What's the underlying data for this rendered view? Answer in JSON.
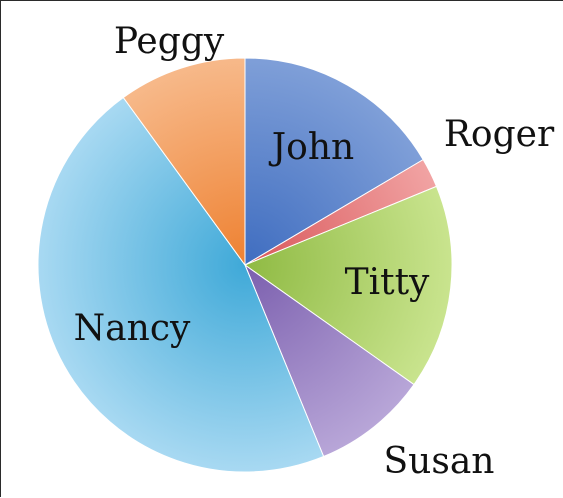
{
  "chart_data": {
    "type": "pie",
    "title": "",
    "legend": "none",
    "slices": [
      {
        "label": "John",
        "value": 16.5,
        "color": "#7f9fd8",
        "color_dark": "#3f6dc0"
      },
      {
        "label": "Roger",
        "value": 2.3,
        "color": "#f1a3a3",
        "color_dark": "#d9575a"
      },
      {
        "label": "Titty",
        "value": 16.0,
        "color": "#c9e48e",
        "color_dark": "#8fba43"
      },
      {
        "label": "Susan",
        "value": 9.0,
        "color": "#b8a6d8",
        "color_dark": "#7b5fae"
      },
      {
        "label": "Nancy",
        "value": 46.2,
        "color": "#a8d9f2",
        "color_dark": "#3fa9d8"
      },
      {
        "label": "Peggy",
        "value": 10.0,
        "color": "#f7b98a",
        "color_dark": "#ee8131"
      }
    ]
  }
}
